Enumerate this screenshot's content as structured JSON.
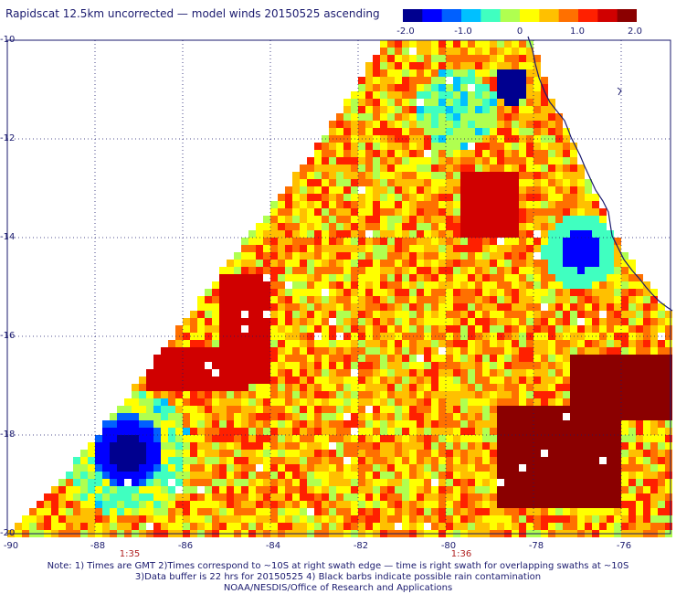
{
  "title": "Rapidscat 12.5km uncorrected — model winds 20150525 ascending",
  "colorbar": {
    "min": -2.0,
    "max": 2.0,
    "tick_labels": [
      "-2.0",
      "-1.0",
      "0",
      "1.0",
      "2.0"
    ],
    "colors": [
      "#00008f",
      "#0000ff",
      "#0060ff",
      "#00c0ff",
      "#40ffc0",
      "#b0ff50",
      "#ffff00",
      "#ffc000",
      "#ff7000",
      "#ff2000",
      "#d00000",
      "#8b0000"
    ]
  },
  "map": {
    "lat_labels": [
      "-10",
      "-12",
      "-14",
      "-16",
      "-18",
      "-20"
    ],
    "lon_labels": [
      "-90",
      "-88",
      "-86",
      "-84",
      "-82",
      "-80",
      "-78",
      "-76"
    ],
    "time_labels": [
      "1:35",
      "1:36"
    ],
    "coastline_color": "#1a1a6e",
    "gridline_color": "#1a1a6e"
  },
  "notes": [
    "Note: 1) Times are GMT 2)Times correspond to ~10S at right swath edge — time is right swath for overlapping swaths at ~10S",
    "3)Data buffer is 22 hrs for 20150525 4) Black barbs indicate possible rain contamination",
    "NOAA/NESDIS/Office of Research and Applications"
  ]
}
